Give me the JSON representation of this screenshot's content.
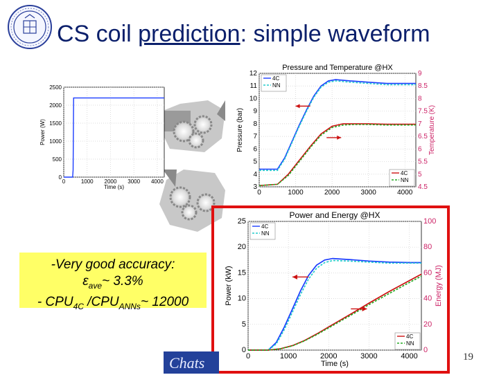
{
  "slide": {
    "title_main": "CS coil ",
    "title_underlined": "prediction",
    "title_rest": ": simple waveform",
    "page_number": "19",
    "logo_text": "Chats",
    "callout": {
      "line1": "-Very good accuracy:",
      "line2_symbol": "ε",
      "line2_sub": "ave",
      "line2_rest": "~  3.3%",
      "line3_a": "- CPU",
      "line3_sub_a": "4C",
      "line3_b": " /CPU",
      "line3_sub_b": "ANNs",
      "line3_rest": "~  12000"
    }
  },
  "chart_data": [
    {
      "type": "line",
      "name": "input power waveform",
      "title": "",
      "xlabel": "Time (s)",
      "ylabel": "Power (W)",
      "xlim": [
        0,
        4300
      ],
      "ylim": [
        0,
        2500
      ],
      "xticks": [
        "0",
        "1000",
        "2000",
        "3000",
        "4000"
      ],
      "yticks": [
        "0",
        "500",
        "1000",
        "1500",
        "2000",
        "2500"
      ],
      "series": [
        {
          "name": "Power",
          "color": "#1a3cff",
          "x": [
            0,
            380,
            400,
            420,
            480,
            4300
          ],
          "y": [
            0,
            0,
            200,
            2200,
            2200,
            2200
          ]
        }
      ]
    },
    {
      "type": "line",
      "name": "pressure and temperature",
      "title": "Pressure and Temperature @HX",
      "xlabel": "",
      "ylabel": "Pressure (bar)",
      "ylabel_right": "Temperature (K)",
      "xlim": [
        0,
        4300
      ],
      "ylim": [
        3,
        12
      ],
      "ylim_right": [
        4.5,
        9
      ],
      "xticks": [
        "0",
        "1000",
        "2000",
        "3000",
        "4000"
      ],
      "yticks": [
        "3",
        "4",
        "5",
        "6",
        "7",
        "8",
        "9",
        "10",
        "11",
        "12"
      ],
      "yticks_right": [
        "4.5",
        "5",
        "5.5",
        "6",
        "6.5",
        "7",
        "7.5",
        "8",
        "8.5",
        "9"
      ],
      "legend_top": [
        "4C",
        "NN"
      ],
      "legend_bottom": [
        "4C",
        "NN"
      ],
      "series": [
        {
          "name": "Pressure 4C",
          "axis": "left",
          "color": "#1a3cff",
          "x": [
            0,
            500,
            700,
            900,
            1100,
            1300,
            1500,
            1700,
            1900,
            2100,
            2500,
            3000,
            3500,
            4000,
            4300
          ],
          "y": [
            4.4,
            4.4,
            5.3,
            6.6,
            7.9,
            9.1,
            10.2,
            11.0,
            11.4,
            11.5,
            11.4,
            11.3,
            11.2,
            11.2,
            11.2
          ]
        },
        {
          "name": "Pressure NN",
          "axis": "left",
          "color": "#22cccc",
          "x": [
            0,
            500,
            700,
            900,
            1100,
            1300,
            1500,
            1700,
            1900,
            2100,
            2500,
            3000,
            3500,
            4000,
            4300
          ],
          "y": [
            4.3,
            4.3,
            5.2,
            6.5,
            7.8,
            9.0,
            10.1,
            10.9,
            11.3,
            11.4,
            11.3,
            11.2,
            11.1,
            11.1,
            11.1
          ]
        },
        {
          "name": "Temperature 4C",
          "axis": "right",
          "color": "#cc1111",
          "x": [
            0,
            500,
            800,
            1100,
            1400,
            1700,
            2000,
            2300,
            2600,
            3000,
            3500,
            4000,
            4300
          ],
          "y": [
            4.55,
            4.6,
            5.0,
            5.55,
            6.1,
            6.6,
            6.9,
            7.0,
            7.0,
            7.0,
            6.98,
            6.98,
            6.98
          ]
        },
        {
          "name": "Temperature NN",
          "axis": "right",
          "color": "#22aa22",
          "x": [
            0,
            500,
            800,
            1100,
            1400,
            1700,
            2000,
            2300,
            2600,
            3000,
            3500,
            4000,
            4300
          ],
          "y": [
            4.55,
            4.6,
            4.95,
            5.5,
            6.05,
            6.55,
            6.85,
            6.95,
            6.97,
            6.97,
            6.95,
            6.95,
            6.95
          ]
        }
      ]
    },
    {
      "type": "line",
      "name": "power and energy",
      "title": "Power and Energy @HX",
      "xlabel": "Time (s)",
      "ylabel": "Power (kW)",
      "ylabel_right": "Energy (MJ)",
      "xlim": [
        0,
        4300
      ],
      "ylim": [
        0,
        25
      ],
      "ylim_right": [
        0,
        100
      ],
      "xticks": [
        "0",
        "1000",
        "2000",
        "3000",
        "4000"
      ],
      "yticks": [
        "0",
        "5",
        "10",
        "15",
        "20",
        "25"
      ],
      "yticks_right": [
        "0",
        "20",
        "40",
        "60",
        "80",
        "100"
      ],
      "legend_top": [
        "4C",
        "NN"
      ],
      "legend_bottom": [
        "4C",
        "NN"
      ],
      "series": [
        {
          "name": "Power 4C",
          "axis": "left",
          "color": "#1a3cff",
          "x": [
            0,
            500,
            700,
            900,
            1100,
            1300,
            1500,
            1700,
            1900,
            2100,
            2500,
            3000,
            3500,
            4000,
            4300
          ],
          "y": [
            0,
            0,
            1.5,
            4.5,
            8.0,
            11.5,
            14.5,
            16.5,
            17.5,
            17.8,
            17.6,
            17.3,
            17.1,
            17.0,
            17.0
          ]
        },
        {
          "name": "Power NN",
          "axis": "left",
          "color": "#22cccc",
          "x": [
            0,
            500,
            700,
            900,
            1100,
            1300,
            1500,
            1700,
            1900,
            2100,
            2500,
            3000,
            3500,
            4000,
            4300
          ],
          "y": [
            0,
            0,
            1.2,
            4.0,
            7.4,
            10.8,
            13.8,
            15.9,
            17.0,
            17.4,
            17.3,
            17.1,
            16.9,
            16.9,
            16.9
          ]
        },
        {
          "name": "Energy 4C",
          "axis": "right",
          "color": "#cc1111",
          "x": [
            0,
            500,
            800,
            1100,
            1400,
            1700,
            2000,
            2300,
            2600,
            3000,
            3500,
            4000,
            4300
          ],
          "y": [
            0,
            0,
            1,
            3.5,
            7.5,
            12.5,
            18,
            23.5,
            29,
            36.5,
            45.5,
            54,
            59
          ]
        },
        {
          "name": "Energy NN",
          "axis": "right",
          "color": "#22aa22",
          "x": [
            0,
            500,
            800,
            1100,
            1400,
            1700,
            2000,
            2300,
            2600,
            3000,
            3500,
            4000,
            4300
          ],
          "y": [
            0,
            0,
            1,
            3.3,
            7.2,
            12,
            17.3,
            22.7,
            28,
            35.3,
            44,
            52.5,
            57.5
          ]
        }
      ]
    }
  ]
}
